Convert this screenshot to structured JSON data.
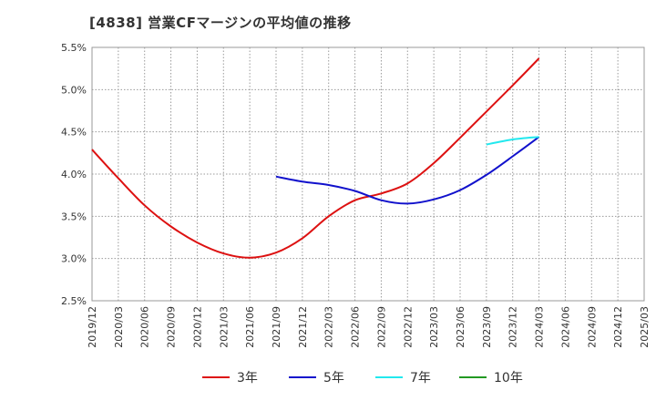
{
  "chart_data": {
    "type": "line",
    "title": "[4838]  営業CFマージンの平均値の推移",
    "xlabel": "",
    "ylabel": "",
    "ylim": [
      2.5,
      5.5
    ],
    "yticks": [
      "2.5%",
      "3.0%",
      "3.5%",
      "4.0%",
      "4.5%",
      "5.0%",
      "5.5%"
    ],
    "categories": [
      "2019/12",
      "2020/03",
      "2020/06",
      "2020/09",
      "2020/12",
      "2021/03",
      "2021/06",
      "2021/09",
      "2021/12",
      "2022/03",
      "2022/06",
      "2022/09",
      "2022/12",
      "2023/03",
      "2023/06",
      "2023/09",
      "2023/12",
      "2024/03",
      "2024/06",
      "2024/09",
      "2024/12",
      "2025/03"
    ],
    "grid": true,
    "legend_position": "bottom",
    "series": [
      {
        "name": "3年",
        "color": "#dd1111",
        "values": [
          4.29,
          3.95,
          3.63,
          3.38,
          3.19,
          3.06,
          3.01,
          3.07,
          3.24,
          3.5,
          3.69,
          3.77,
          3.89,
          4.13,
          4.43,
          4.74,
          5.05,
          5.37,
          null,
          null,
          null,
          null
        ]
      },
      {
        "name": "5年",
        "color": "#1111cc",
        "values": [
          null,
          null,
          null,
          null,
          null,
          null,
          null,
          3.97,
          3.91,
          3.87,
          3.8,
          3.69,
          3.65,
          3.7,
          3.81,
          3.99,
          4.21,
          4.44,
          null,
          null,
          null,
          null
        ]
      },
      {
        "name": "7年",
        "color": "#22e8ee",
        "values": [
          null,
          null,
          null,
          null,
          null,
          null,
          null,
          null,
          null,
          null,
          null,
          null,
          null,
          null,
          null,
          4.35,
          4.41,
          4.44,
          null,
          null,
          null,
          null
        ]
      },
      {
        "name": "10年",
        "color": "#229922",
        "values": [
          null,
          null,
          null,
          null,
          null,
          null,
          null,
          null,
          null,
          null,
          null,
          null,
          null,
          null,
          null,
          null,
          null,
          null,
          null,
          null,
          null,
          null
        ]
      }
    ]
  }
}
